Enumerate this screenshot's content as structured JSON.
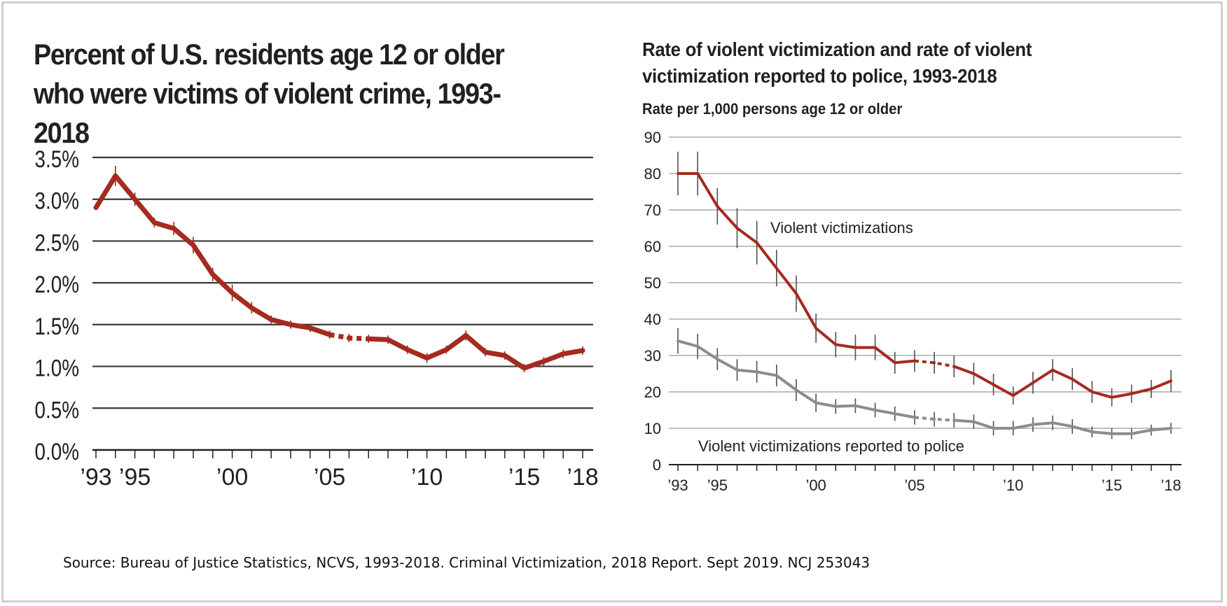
{
  "source": "Source: Bureau of Justice Statistics, NCVS, 1993-2018. Criminal Victimization, 2018 Report. Sept 2019. NCJ 253043",
  "chart_data": [
    {
      "type": "line",
      "title": "Percent of U.S. residents age 12 or older who were victims of violent crime, 1993-2018",
      "ylim": [
        0,
        3.5
      ],
      "xlim": [
        1993,
        2018
      ],
      "y_ticks": [
        "0.0%",
        "0.5%",
        "1.0%",
        "1.5%",
        "2.0%",
        "2.5%",
        "3.0%",
        "3.5%"
      ],
      "x_tick_labels": [
        {
          "year": 1993,
          "label": "’93"
        },
        {
          "year": 1995,
          "label": "’95"
        },
        {
          "year": 2000,
          "label": "’00"
        },
        {
          "year": 2005,
          "label": "’05"
        },
        {
          "year": 2010,
          "label": "’10"
        },
        {
          "year": 2015,
          "label": "’15"
        },
        {
          "year": 2018,
          "label": "’18"
        }
      ],
      "grid": true,
      "dashed_segment": [
        2005,
        2007
      ],
      "series": [
        {
          "color": "#a52a1f",
          "x": [
            1993,
            1994,
            1995,
            1996,
            1997,
            1998,
            1999,
            2000,
            2001,
            2002,
            2003,
            2004,
            2005,
            2006,
            2007,
            2008,
            2009,
            2010,
            2011,
            2012,
            2013,
            2014,
            2015,
            2016,
            2017,
            2018
          ],
          "y": [
            2.9,
            3.28,
            3.0,
            2.72,
            2.65,
            2.45,
            2.1,
            1.88,
            1.7,
            1.56,
            1.5,
            1.46,
            1.38,
            1.34,
            1.33,
            1.32,
            1.2,
            1.1,
            1.2,
            1.37,
            1.17,
            1.13,
            0.98,
            1.06,
            1.15,
            1.19
          ],
          "error": [
            0.02,
            0.12,
            0.08,
            0.06,
            0.08,
            0.1,
            0.08,
            0.1,
            0.07,
            0.05,
            0.05,
            0.05,
            0.05,
            0.05,
            0.05,
            0.05,
            0.05,
            0.06,
            0.05,
            0.06,
            0.05,
            0.05,
            0.05,
            0.05,
            0.05,
            0.05
          ]
        }
      ]
    },
    {
      "type": "line",
      "title": "Rate of violent victimization and rate of violent victimization reported to police, 1993-2018",
      "ylabel": "Rate per 1,000 persons age 12 or older",
      "ylim": [
        0,
        90
      ],
      "xlim": [
        1993,
        2018
      ],
      "y_ticks": [
        "0",
        "10",
        "20",
        "30",
        "40",
        "50",
        "60",
        "70",
        "80",
        "90"
      ],
      "x_tick_labels": [
        {
          "year": 1993,
          "label": "’93"
        },
        {
          "year": 1995,
          "label": "’95"
        },
        {
          "year": 2000,
          "label": "’00"
        },
        {
          "year": 2005,
          "label": "’05"
        },
        {
          "year": 2010,
          "label": "’10"
        },
        {
          "year": 2015,
          "label": "’15"
        },
        {
          "year": 2018,
          "label": "’18"
        }
      ],
      "grid": true,
      "dashed_segment": [
        2005,
        2007
      ],
      "series": [
        {
          "name": "Violent victimizations",
          "color": "#a52a1f",
          "x": [
            1993,
            1994,
            1995,
            1996,
            1997,
            1998,
            1999,
            2000,
            2001,
            2002,
            2003,
            2004,
            2005,
            2006,
            2007,
            2008,
            2009,
            2010,
            2011,
            2012,
            2013,
            2014,
            2015,
            2016,
            2017,
            2018
          ],
          "y": [
            80,
            80,
            71,
            65,
            61,
            54,
            47,
            37.5,
            33,
            32.2,
            32.2,
            28,
            28.5,
            28,
            27,
            25,
            22,
            19,
            22.5,
            26,
            23.5,
            20,
            18.5,
            19.5,
            20.8,
            23
          ],
          "error": [
            6,
            6,
            5,
            5.5,
            6,
            5,
            5,
            4,
            3.5,
            3.5,
            3.5,
            3,
            3,
            3,
            3,
            3,
            3,
            2.5,
            3,
            3,
            3,
            3,
            2.5,
            2.5,
            2.5,
            3
          ]
        },
        {
          "name": "Violent victimizations reported to police",
          "color": "#8c8c8c",
          "x": [
            1993,
            1994,
            1995,
            1996,
            1997,
            1998,
            1999,
            2000,
            2001,
            2002,
            2003,
            2004,
            2005,
            2006,
            2007,
            2008,
            2009,
            2010,
            2011,
            2012,
            2013,
            2014,
            2015,
            2016,
            2017,
            2018
          ],
          "y": [
            34,
            32.5,
            29,
            26,
            25.5,
            24.5,
            20.5,
            17,
            16,
            16.2,
            15,
            14,
            13,
            12.5,
            12.2,
            11.8,
            10,
            10,
            11,
            11.5,
            10.5,
            9,
            8.5,
            8.5,
            9.5,
            10
          ],
          "error": [
            3.5,
            3.5,
            3,
            3,
            3,
            3,
            3,
            2.5,
            2,
            2,
            2,
            2,
            2,
            2,
            2,
            2,
            2,
            2,
            2,
            2,
            2,
            1.5,
            1.5,
            1.5,
            1.5,
            1.5
          ]
        }
      ]
    }
  ]
}
